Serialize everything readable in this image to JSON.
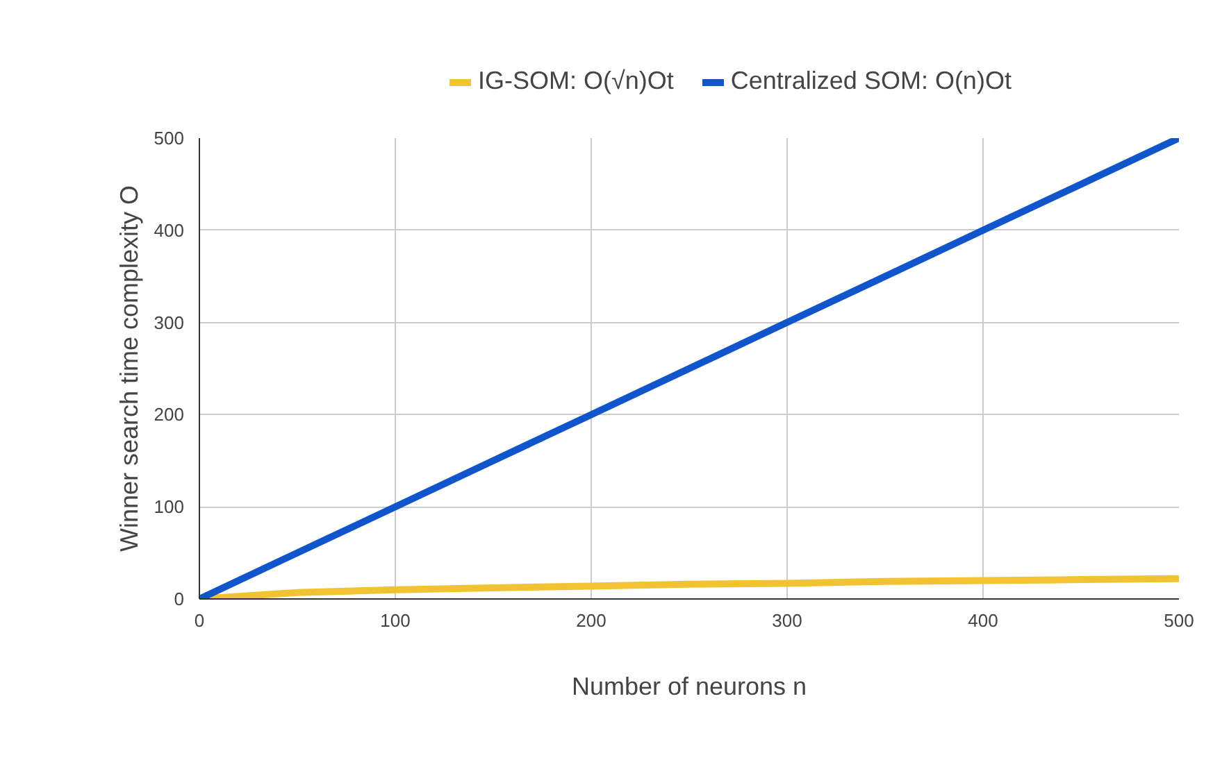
{
  "chart_data": {
    "type": "line",
    "xlabel": "Number of neurons n",
    "ylabel": "Winner search time complexity O",
    "x": [
      0,
      50,
      100,
      150,
      200,
      250,
      300,
      350,
      400,
      450,
      500
    ],
    "series": [
      {
        "name": "IG-SOM: O(√n)Ot",
        "color": "#f1c232",
        "values": [
          0,
          7,
          10,
          12,
          14,
          16,
          17,
          19,
          20,
          21,
          22
        ]
      },
      {
        "name": "Centralized SOM: O(n)Ot",
        "color": "#1155cc",
        "values": [
          0,
          50,
          100,
          150,
          200,
          250,
          300,
          350,
          400,
          450,
          500
        ]
      }
    ],
    "xlim": [
      0,
      500
    ],
    "ylim": [
      0,
      500
    ],
    "xticks": [
      0,
      100,
      200,
      300,
      400,
      500
    ],
    "yticks": [
      0,
      100,
      200,
      300,
      400,
      500
    ],
    "grid": true,
    "legend": "top",
    "marker": "none",
    "line_style": "solid"
  }
}
